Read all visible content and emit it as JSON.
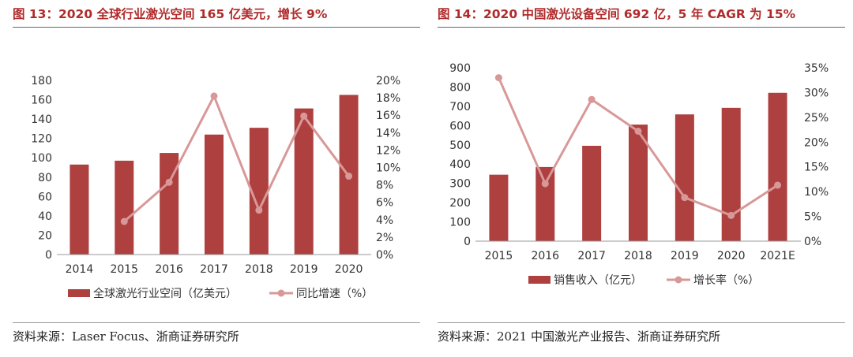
{
  "chart_data": [
    {
      "type": "bar",
      "title": "图 13：2020 全球行业激光空间 165 亿美元，增长 9%",
      "categories": [
        "2014",
        "2015",
        "2016",
        "2017",
        "2018",
        "2019",
        "2020"
      ],
      "series": [
        {
          "name": "全球激光行业空间（亿美元）",
          "kind": "bar",
          "axis": "left",
          "values": [
            93,
            97,
            105,
            124,
            131,
            151,
            165
          ]
        },
        {
          "name": "同比增速（%）",
          "kind": "line",
          "axis": "right",
          "values": [
            null,
            3.8,
            8.3,
            18.2,
            5.1,
            15.9,
            9.0
          ]
        }
      ],
      "ylim": [
        0,
        180
      ],
      "yticks": [
        "0",
        "20",
        "40",
        "60",
        "80",
        "100",
        "120",
        "140",
        "160",
        "180"
      ],
      "y2lim": [
        0,
        20
      ],
      "y2ticks": [
        "0%",
        "2%",
        "4%",
        "6%",
        "8%",
        "10%",
        "12%",
        "14%",
        "16%",
        "18%",
        "20%"
      ],
      "legend": "bottom",
      "source": "资料来源：Laser Focus、浙商证券研究所",
      "colors": {
        "bar": "#ae4040",
        "line": "#d89898",
        "title": "#b02a2a",
        "axis": "#999999"
      }
    },
    {
      "type": "bar",
      "title": "图 14：2020 中国激光设备空间 692 亿，5 年 CAGR 为 15%",
      "categories": [
        "2015",
        "2016",
        "2017",
        "2018",
        "2019",
        "2020",
        "2021E"
      ],
      "series": [
        {
          "name": "销售收入（亿元）",
          "kind": "bar",
          "axis": "left",
          "values": [
            345,
            385,
            495,
            605,
            658,
            692,
            770
          ]
        },
        {
          "name": "增长率（%）",
          "kind": "line",
          "axis": "right",
          "values": [
            33.0,
            11.6,
            28.6,
            22.2,
            8.8,
            5.2,
            11.3
          ]
        }
      ],
      "ylim": [
        0,
        900
      ],
      "yticks": [
        "0",
        "100",
        "200",
        "300",
        "400",
        "500",
        "600",
        "700",
        "800",
        "900"
      ],
      "y2lim": [
        0,
        35
      ],
      "y2ticks": [
        "0%",
        "5%",
        "10%",
        "15%",
        "20%",
        "25%",
        "30%",
        "35%"
      ],
      "legend": "bottom",
      "source": "资料来源：2021 中国激光产业报告、浙商证券研究所",
      "colors": {
        "bar": "#ae4040",
        "line": "#d89898",
        "title": "#b02a2a",
        "axis": "#999999"
      }
    }
  ]
}
